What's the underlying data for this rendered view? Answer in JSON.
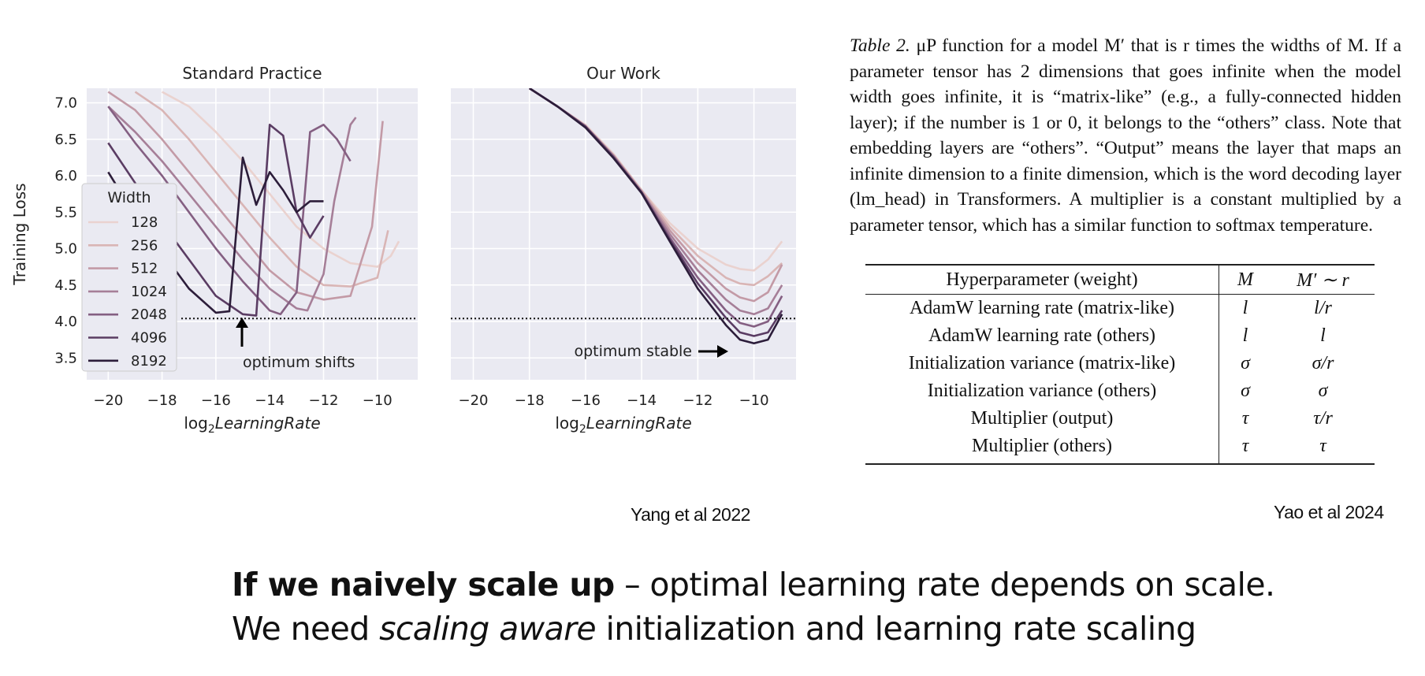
{
  "chart_data": [
    {
      "type": "line",
      "title": "Standard Practice",
      "xlabel_base": "log",
      "xlabel_sub": "2",
      "xlabel_rest": "LearningRate",
      "ylabel": "Training Loss",
      "xlim": [
        -20.8,
        -8.5
      ],
      "ylim": [
        3.2,
        7.2
      ],
      "xticks": [
        -20,
        -18,
        -16,
        -14,
        -12,
        -10
      ],
      "yticks": [
        3.5,
        4.0,
        4.5,
        5.0,
        5.5,
        6.0,
        6.5,
        7.0
      ],
      "grid": true,
      "reference_line_y": 4.04,
      "annotation": "optimum shifts",
      "legend": {
        "title": "Width",
        "placement": "left"
      },
      "series": [
        {
          "name": "128",
          "color": "#ead2cf",
          "x": [
            -18,
            -17,
            -16,
            -15,
            -14,
            -13,
            -12,
            -11,
            -10,
            -9.5,
            -9.2
          ],
          "y": [
            7.15,
            6.95,
            6.6,
            6.2,
            5.75,
            5.3,
            5.0,
            4.8,
            4.75,
            4.9,
            5.1
          ]
        },
        {
          "name": "256",
          "color": "#d9b5b5",
          "x": [
            -19,
            -18,
            -17,
            -16,
            -15,
            -14,
            -13,
            -12,
            -11,
            -10,
            -9.6
          ],
          "y": [
            7.15,
            6.9,
            6.5,
            6.05,
            5.6,
            5.15,
            4.75,
            4.5,
            4.48,
            4.6,
            5.25
          ]
        },
        {
          "name": "512",
          "color": "#c39aa6",
          "x": [
            -20,
            -19,
            -18,
            -17,
            -16,
            -15,
            -14,
            -13,
            -12,
            -11,
            -10.2,
            -9.8
          ],
          "y": [
            7.15,
            6.9,
            6.5,
            6.05,
            5.6,
            5.15,
            4.7,
            4.4,
            4.3,
            4.35,
            5.3,
            6.75
          ]
        },
        {
          "name": "1024",
          "color": "#a67f98",
          "x": [
            -20,
            -19,
            -18,
            -17,
            -16,
            -15,
            -14,
            -13,
            -12.6,
            -12,
            -11.6,
            -11,
            -10.8
          ],
          "y": [
            6.95,
            6.6,
            6.2,
            5.75,
            5.3,
            4.85,
            4.45,
            4.18,
            4.15,
            4.65,
            5.65,
            6.7,
            6.8
          ]
        },
        {
          "name": "2048",
          "color": "#845f82",
          "x": [
            -20,
            -19,
            -18,
            -17,
            -16,
            -15,
            -14,
            -13.6,
            -13,
            -12.5,
            -12,
            -11.5,
            -11
          ],
          "y": [
            6.95,
            6.45,
            6.0,
            5.5,
            5.0,
            4.55,
            4.15,
            4.1,
            4.4,
            6.6,
            6.7,
            6.5,
            6.2
          ]
        },
        {
          "name": "4096",
          "color": "#5a3c63",
          "x": [
            -20,
            -19,
            -18,
            -17,
            -16,
            -15,
            -14.5,
            -14,
            -13.5,
            -13,
            -12.5,
            -12
          ],
          "y": [
            6.45,
            5.9,
            5.35,
            4.85,
            4.35,
            4.1,
            4.08,
            6.7,
            6.55,
            5.5,
            5.15,
            5.45
          ]
        },
        {
          "name": "8192",
          "color": "#2c1d3a",
          "x": [
            -20,
            -19,
            -18,
            -17,
            -16,
            -15.5,
            -15,
            -14.5,
            -14,
            -13.5,
            -13,
            -12.5,
            -12
          ],
          "y": [
            6.05,
            5.45,
            4.95,
            4.45,
            4.12,
            4.14,
            6.25,
            5.6,
            6.05,
            5.8,
            5.5,
            5.65,
            5.65
          ]
        }
      ]
    },
    {
      "type": "line",
      "title": "Our Work",
      "xlabel_base": "log",
      "xlabel_sub": "2",
      "xlabel_rest": "LearningRate",
      "xlim": [
        -20.8,
        -8.5
      ],
      "ylim": [
        3.2,
        7.2
      ],
      "xticks": [
        -20,
        -18,
        -16,
        -14,
        -12,
        -10
      ],
      "grid": true,
      "reference_line_y": 4.04,
      "annotation": "optimum stable",
      "series": [
        {
          "name": "128",
          "color": "#ead2cf",
          "x": [
            -18,
            -17,
            -16,
            -15,
            -14,
            -13,
            -12,
            -11,
            -10.5,
            -10,
            -9.5,
            -9
          ],
          "y": [
            7.2,
            6.95,
            6.7,
            6.3,
            5.8,
            5.35,
            5.0,
            4.78,
            4.72,
            4.7,
            4.85,
            5.1
          ]
        },
        {
          "name": "256",
          "color": "#d9b5b5",
          "x": [
            -18,
            -17,
            -16,
            -15,
            -14,
            -13,
            -12,
            -11,
            -10.5,
            -10,
            -9.5,
            -9
          ],
          "y": [
            7.2,
            6.95,
            6.68,
            6.28,
            5.8,
            5.3,
            4.9,
            4.6,
            4.52,
            4.5,
            4.62,
            4.8
          ]
        },
        {
          "name": "512",
          "color": "#c39aa6",
          "x": [
            -18,
            -17,
            -16,
            -15,
            -14,
            -13,
            -12,
            -11,
            -10.5,
            -10,
            -9.5,
            -9
          ],
          "y": [
            7.2,
            6.95,
            6.68,
            6.28,
            5.78,
            5.25,
            4.8,
            4.45,
            4.33,
            4.28,
            4.4,
            4.78
          ]
        },
        {
          "name": "1024",
          "color": "#a67f98",
          "x": [
            -18,
            -17,
            -16,
            -15,
            -14,
            -13,
            -12,
            -11,
            -10.5,
            -10,
            -9.5,
            -9
          ],
          "y": [
            7.2,
            6.95,
            6.68,
            6.27,
            5.78,
            5.2,
            4.7,
            4.3,
            4.15,
            4.1,
            4.18,
            4.5
          ]
        },
        {
          "name": "2048",
          "color": "#845f82",
          "x": [
            -18,
            -17,
            -16,
            -15,
            -14,
            -13,
            -12,
            -11,
            -10.5,
            -10,
            -9.5,
            -9
          ],
          "y": [
            7.2,
            6.95,
            6.68,
            6.26,
            5.77,
            5.15,
            4.6,
            4.15,
            3.98,
            3.93,
            4.0,
            4.35
          ]
        },
        {
          "name": "4096",
          "color": "#5a3c63",
          "x": [
            -18,
            -17,
            -16,
            -15,
            -14,
            -13,
            -12,
            -11,
            -10.5,
            -10,
            -9.5,
            -9
          ],
          "y": [
            7.2,
            6.95,
            6.67,
            6.25,
            5.77,
            5.12,
            4.52,
            4.05,
            3.85,
            3.8,
            3.85,
            4.15
          ]
        },
        {
          "name": "8192",
          "color": "#2c1d3a",
          "x": [
            -18,
            -17,
            -16,
            -15,
            -14,
            -13,
            -12,
            -11,
            -10.5,
            -10,
            -9.5,
            -9
          ],
          "y": [
            7.2,
            6.95,
            6.66,
            6.24,
            5.76,
            5.1,
            4.45,
            3.95,
            3.75,
            3.7,
            3.75,
            4.1
          ]
        }
      ]
    }
  ],
  "table": {
    "caption_label": "Table 2.",
    "caption_text": " μP function for a model M′ that is r times the widths of M. If a parameter tensor has 2 dimensions that goes infinite when the model width goes infinite, it is “matrix-like” (e.g., a fully-connected hidden layer); if the number is 1 or 0, it belongs to the “others” class.  Note that embedding layers are “others”. “Output” means the layer that maps an infinite dimension to a finite dimension, which is the word decoding layer (lm_head) in Transformers. A multiplier is a constant multiplied by a parameter tensor, which has a similar function to softmax temperature.",
    "headers": [
      "Hyperparameter (weight)",
      "M",
      "M′ ∼ r"
    ],
    "rows": [
      [
        "AdamW learning rate (matrix-like)",
        "l",
        "l/r"
      ],
      [
        "AdamW learning rate (others)",
        "l",
        "l"
      ],
      [
        "Initialization variance (matrix-like)",
        "σ",
        "σ/r"
      ],
      [
        "Initialization variance (others)",
        "σ",
        "σ"
      ],
      [
        "Multiplier (output)",
        "τ",
        "τ/r"
      ],
      [
        "Multiplier (others)",
        "τ",
        "τ"
      ]
    ]
  },
  "citations": {
    "left": "Yang et al 2022",
    "right": "Yao et al 2024"
  },
  "footer": {
    "line1_bold": "If we naively scale up",
    "line1_rest": " – optimal learning rate depends on scale.",
    "line2_a": "We need ",
    "line2_italic": "scaling aware",
    "line2_b": " initialization and learning rate scaling"
  }
}
